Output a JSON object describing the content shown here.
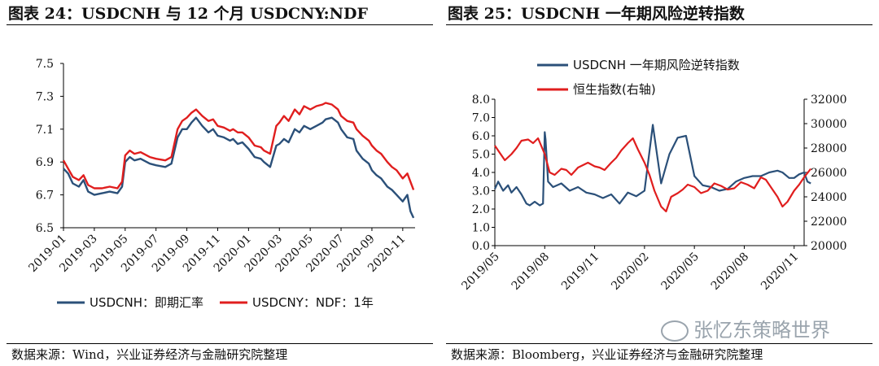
{
  "panels": [
    {
      "title": "图表 24：USDCNH 与 12 个月 USDCNY:NDF",
      "source": "数据来源：Wind，兴业证券经济与金融研究院整理"
    },
    {
      "title": "图表 25：USDCNH 一年期风险逆转指数",
      "source": "数据来源：Bloomberg，兴业证券经济与金融研究院整理"
    }
  ],
  "watermark": {
    "text": "张忆东策略世界"
  },
  "chart_data": [
    {
      "type": "line",
      "ylim": [
        6.5,
        7.5
      ],
      "yticks": [
        "6.5",
        "6.7",
        "6.9",
        "7.1",
        "7.3",
        "7.5"
      ],
      "xticks": [
        "2019-01",
        "2019-03",
        "2019-05",
        "2019-07",
        "2019-09",
        "2019-11",
        "2020-01",
        "2020-03",
        "2020-05",
        "2020-07",
        "2020-09",
        "2020-11"
      ],
      "legend_position": "bottom",
      "grid": false,
      "series": [
        {
          "name": "USDCNH：即期汇率",
          "color": "#2b5079",
          "x": [
            0,
            0.3,
            0.6,
            1,
            1.3,
            1.6,
            2,
            2.5,
            3,
            3.5,
            3.8,
            4,
            4.3,
            4.6,
            5,
            5.6,
            6,
            6.6,
            7,
            7.4,
            7.7,
            8,
            8.3,
            8.6,
            9,
            9.4,
            9.7,
            10,
            10.4,
            10.8,
            11,
            11.3,
            11.6,
            12,
            12.4,
            12.8,
            13,
            13.4,
            13.8,
            14,
            14.3,
            14.6,
            15,
            15.3,
            15.6,
            16,
            16.4,
            16.8,
            17,
            17.4,
            17.8,
            18,
            18.4,
            18.8,
            19,
            19.4,
            19.8,
            20,
            20.3,
            20.6,
            21,
            21.3,
            21.6,
            22,
            22.3,
            22.5,
            22.7
          ],
          "values": [
            6.86,
            6.83,
            6.77,
            6.75,
            6.79,
            6.72,
            6.7,
            6.71,
            6.72,
            6.71,
            6.75,
            6.9,
            6.93,
            6.91,
            6.92,
            6.89,
            6.88,
            6.87,
            6.89,
            7.05,
            7.1,
            7.1,
            7.14,
            7.17,
            7.12,
            7.08,
            7.1,
            7.06,
            7.05,
            7.03,
            7.04,
            7.01,
            7.02,
            6.98,
            6.93,
            6.92,
            6.9,
            6.87,
            7.0,
            7.01,
            7.04,
            7.02,
            7.1,
            7.08,
            7.12,
            7.1,
            7.12,
            7.14,
            7.16,
            7.17,
            7.14,
            7.1,
            7.05,
            7.04,
            6.97,
            6.92,
            6.89,
            6.85,
            6.82,
            6.8,
            6.75,
            6.73,
            6.7,
            6.66,
            6.7,
            6.6,
            6.56
          ]
        },
        {
          "name": "USDCNY：NDF：1年",
          "color": "#e01e1e",
          "x": [
            0,
            0.3,
            0.6,
            1,
            1.3,
            1.6,
            2,
            2.5,
            3,
            3.5,
            3.8,
            4,
            4.3,
            4.6,
            5,
            5.6,
            6,
            6.6,
            7,
            7.4,
            7.7,
            8,
            8.3,
            8.6,
            9,
            9.4,
            9.7,
            10,
            10.4,
            10.8,
            11,
            11.3,
            11.6,
            12,
            12.4,
            12.8,
            13,
            13.4,
            13.8,
            14,
            14.3,
            14.6,
            15,
            15.3,
            15.6,
            16,
            16.4,
            16.8,
            17,
            17.4,
            17.8,
            18,
            18.4,
            18.8,
            19,
            19.4,
            19.8,
            20,
            20.3,
            20.6,
            21,
            21.3,
            21.6,
            22,
            22.3,
            22.5,
            22.7
          ],
          "values": [
            6.91,
            6.86,
            6.81,
            6.79,
            6.82,
            6.76,
            6.74,
            6.74,
            6.75,
            6.74,
            6.78,
            6.94,
            6.97,
            6.95,
            6.96,
            6.93,
            6.92,
            6.91,
            6.93,
            7.1,
            7.15,
            7.17,
            7.2,
            7.22,
            7.18,
            7.15,
            7.16,
            7.12,
            7.11,
            7.09,
            7.1,
            7.08,
            7.08,
            7.05,
            7.0,
            6.99,
            6.97,
            6.95,
            7.12,
            7.14,
            7.18,
            7.15,
            7.22,
            7.19,
            7.24,
            7.22,
            7.24,
            7.25,
            7.26,
            7.25,
            7.22,
            7.18,
            7.15,
            7.14,
            7.1,
            7.06,
            7.03,
            7.0,
            6.97,
            6.95,
            6.9,
            6.87,
            6.85,
            6.8,
            6.83,
            6.78,
            6.73
          ]
        }
      ]
    },
    {
      "type": "line",
      "ylim": [
        0,
        8
      ],
      "y2lim": [
        20000,
        32000
      ],
      "yticks": [
        "0.0",
        "1.0",
        "2.0",
        "3.0",
        "4.0",
        "5.0",
        "6.0",
        "7.0",
        "8.0"
      ],
      "y2ticks": [
        "20000",
        "22000",
        "24000",
        "26000",
        "28000",
        "30000",
        "32000"
      ],
      "xticks": [
        "2019/05",
        "2019/08",
        "2019/11",
        "2020/02",
        "2020/05",
        "2020/08",
        "2020/11"
      ],
      "legend_position": "top",
      "grid": false,
      "series": [
        {
          "name": "USDCNH 一年期风险逆转指数",
          "color": "#2b5079",
          "axis": "left",
          "x": [
            0,
            0.2,
            0.5,
            0.8,
            1,
            1.3,
            1.6,
            1.9,
            2.1,
            2.4,
            2.7,
            2.9,
            3.0,
            3.05,
            3.2,
            3.5,
            4,
            4.5,
            5,
            5.5,
            6,
            6.5,
            7,
            7.5,
            8,
            8.5,
            9,
            9.5,
            10,
            10.5,
            11,
            11.5,
            12,
            12.5,
            13,
            13.5,
            14,
            14.5,
            15,
            15.5,
            16,
            16.5,
            17,
            17.3,
            17.7,
            18,
            18.3,
            18.6,
            18.8,
            19
          ],
          "values": [
            3.1,
            3.5,
            3.0,
            3.3,
            2.9,
            3.2,
            2.8,
            2.3,
            2.2,
            2.4,
            2.2,
            2.3,
            6.2,
            5.8,
            3.5,
            3.2,
            3.4,
            3.0,
            3.2,
            2.9,
            2.8,
            2.6,
            2.8,
            2.3,
            2.9,
            2.7,
            3.0,
            6.6,
            3.4,
            5.0,
            5.9,
            6.0,
            3.8,
            3.3,
            3.2,
            3.0,
            3.1,
            3.5,
            3.7,
            3.8,
            3.8,
            4.0,
            4.1,
            4.0,
            3.7,
            3.7,
            3.9,
            4.0,
            3.5,
            3.4
          ]
        },
        {
          "name": "恒生指数(右轴)",
          "color": "#e01e1e",
          "axis": "right",
          "x": [
            0,
            0.3,
            0.6,
            1,
            1.3,
            1.6,
            2,
            2.3,
            2.6,
            3,
            3.3,
            3.6,
            4,
            4.3,
            4.6,
            5,
            5.3,
            5.6,
            6,
            6.3,
            6.6,
            7,
            7.3,
            7.6,
            8,
            8.3,
            8.6,
            9,
            9.3,
            9.6,
            10,
            10.3,
            10.6,
            11,
            11.3,
            11.6,
            12,
            12.4,
            12.8,
            13.2,
            13.6,
            14,
            14.4,
            14.8,
            15.2,
            15.6,
            16,
            16.3,
            16.6,
            17,
            17.3,
            17.6,
            18,
            18.3,
            18.6,
            19
          ],
          "values": [
            28200,
            27600,
            27000,
            27500,
            28000,
            28600,
            28700,
            28400,
            28800,
            27500,
            26000,
            25800,
            26300,
            26200,
            25800,
            26400,
            26600,
            26800,
            26500,
            26400,
            26200,
            26800,
            27200,
            27800,
            28400,
            28800,
            27900,
            26800,
            25800,
            24500,
            23200,
            22800,
            24000,
            24300,
            24600,
            25000,
            24800,
            24300,
            24500,
            25100,
            24900,
            24600,
            24700,
            25200,
            25000,
            24700,
            25600,
            25400,
            24800,
            24000,
            23200,
            23600,
            24500,
            25000,
            25600,
            26300
          ]
        }
      ]
    }
  ]
}
